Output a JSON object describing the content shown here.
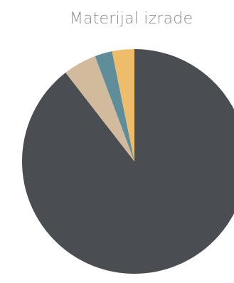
{
  "chart_data": {
    "type": "pie",
    "title": "Materijal izrade",
    "slices": [
      {
        "name": "",
        "value": 89.5,
        "color": "#4a4d51"
      },
      {
        "name": "",
        "value": 4.8,
        "color": "#d1bb9c"
      },
      {
        "name": "",
        "value": 2.5,
        "color": "#5f8d99"
      },
      {
        "name": "",
        "value": 3.2,
        "color": "#eebd6c"
      }
    ],
    "start_angle_deg": 0,
    "direction": "clockwise",
    "legend": "none"
  }
}
